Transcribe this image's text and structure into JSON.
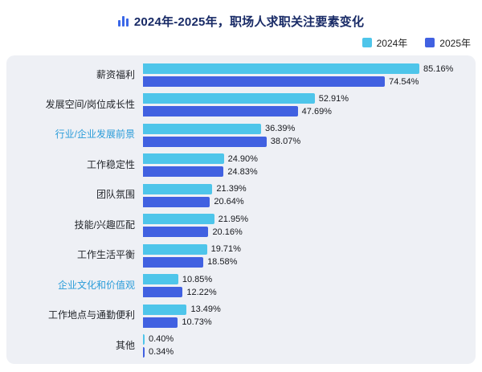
{
  "title": "2024年-2025年，职场人求职关注要素变化",
  "colors": {
    "title": "#182a66",
    "panel_bg": "#eef0f5",
    "highlight_label": "#2a9cd9",
    "series_2024": "#4ec5ea",
    "series_2025": "#4161e1"
  },
  "chart_data": {
    "type": "bar",
    "orientation": "horizontal",
    "title": "2024年-2025年，职场人求职关注要素变化",
    "legend_position": "top-right",
    "xlim": [
      0,
      100
    ],
    "value_suffix": "%",
    "scale_max": 100,
    "categories": [
      "薪资福利",
      "发展空间/岗位成长性",
      "行业/企业发展前景",
      "工作稳定性",
      "团队氛围",
      "技能/兴趣匹配",
      "工作生活平衡",
      "企业文化和价值观",
      "工作地点与通勤便利",
      "其他"
    ],
    "highlighted_categories": [
      "行业/企业发展前景",
      "企业文化和价值观"
    ],
    "series": [
      {
        "name": "2024年",
        "color": "#4ec5ea",
        "values": [
          85.16,
          52.91,
          36.39,
          24.9,
          21.39,
          21.95,
          19.71,
          10.85,
          13.49,
          0.4
        ]
      },
      {
        "name": "2025年",
        "color": "#4161e1",
        "values": [
          74.54,
          47.69,
          38.07,
          24.83,
          20.64,
          20.16,
          18.58,
          12.22,
          10.73,
          0.34
        ]
      }
    ]
  }
}
